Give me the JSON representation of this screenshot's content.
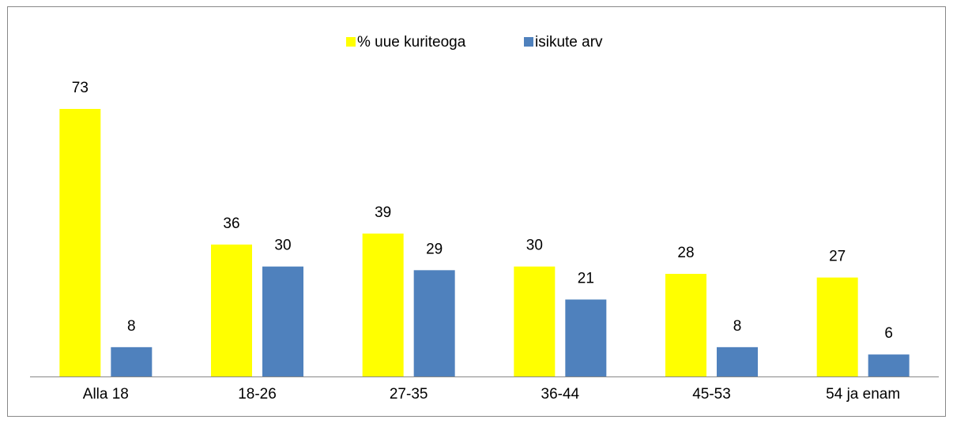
{
  "chart_data": {
    "type": "bar",
    "categories": [
      "Alla 18",
      "18-26",
      "27-35",
      "36-44",
      "45-53",
      "54 ja enam"
    ],
    "series": [
      {
        "name": "% uue kuriteoga",
        "color": "#ffff00",
        "values": [
          73,
          36,
          39,
          30,
          28,
          27
        ]
      },
      {
        "name": "isikute arv",
        "color": "#4f81bd",
        "values": [
          8,
          30,
          29,
          21,
          8,
          6
        ]
      }
    ],
    "legend": "top"
  }
}
